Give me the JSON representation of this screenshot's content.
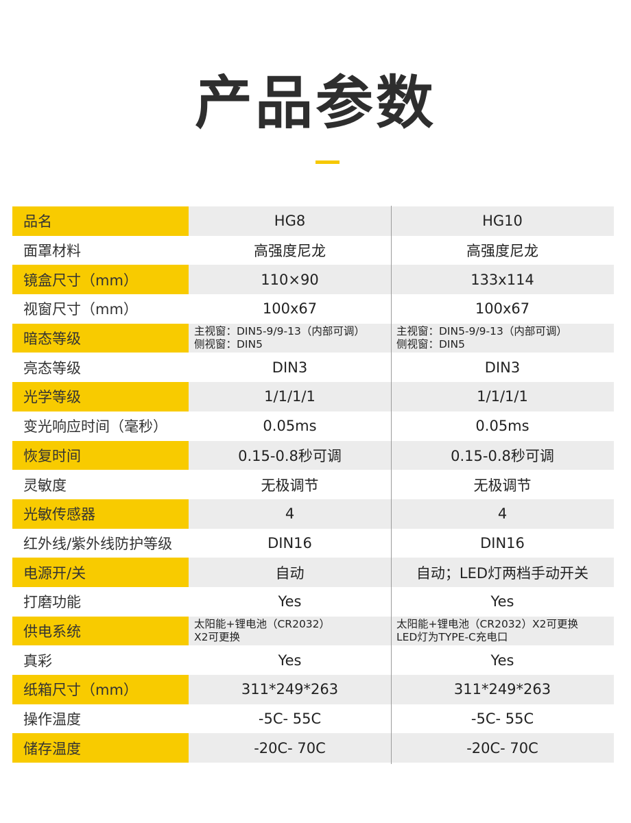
{
  "title": "产品参数",
  "accent_color": "#f8cb00",
  "table": {
    "rows": [
      {
        "label": "品名",
        "hg8": "HG8",
        "hg10": "HG10"
      },
      {
        "label": "面罩材料",
        "hg8": "高强度尼龙",
        "hg10": "高强度尼龙"
      },
      {
        "label": "镜盒尺寸（mm）",
        "hg8": "110×90",
        "hg10": "133x114"
      },
      {
        "label": "视窗尺寸（mm）",
        "hg8": "100x67",
        "hg10": "100x67"
      },
      {
        "label": "暗态等级",
        "hg8": [
          "主视窗：DIN5-9/9-13（内部可调）",
          "侧视窗：DIN5"
        ],
        "hg10": [
          "主视窗：DIN5-9/9-13（内部可调）",
          "侧视窗：DIN5"
        ]
      },
      {
        "label": "亮态等级",
        "hg8": "DIN3",
        "hg10": "DIN3"
      },
      {
        "label": "光学等级",
        "hg8": "1/1/1/1",
        "hg10": "1/1/1/1"
      },
      {
        "label": "变光响应时间（毫秒）",
        "hg8": "0.05ms",
        "hg10": "0.05ms"
      },
      {
        "label": "恢复时间",
        "hg8": "0.15-0.8秒可调",
        "hg10": "0.15-0.8秒可调"
      },
      {
        "label": "灵敏度",
        "hg8": "无极调节",
        "hg10": "无极调节"
      },
      {
        "label": "光敏传感器",
        "hg8": "4",
        "hg10": "4"
      },
      {
        "label": "红外线/紫外线防护等级",
        "hg8": "DIN16",
        "hg10": "DIN16"
      },
      {
        "label": "电源开/关",
        "hg8": "自动",
        "hg10": "自动；LED灯两档手动开关"
      },
      {
        "label": "打磨功能",
        "hg8": "Yes",
        "hg10": "Yes"
      },
      {
        "label": "供电系统",
        "hg8": [
          "太阳能+锂电池（CR2032）",
          "X2可更换"
        ],
        "hg10": [
          "太阳能+锂电池（CR2032）X2可更换",
          "LED灯为TYPE-C充电口"
        ]
      },
      {
        "label": "真彩",
        "hg8": "Yes",
        "hg10": "Yes"
      },
      {
        "label": "纸箱尺寸（mm）",
        "hg8": "311*249*263",
        "hg10": "311*249*263"
      },
      {
        "label": "操作温度",
        "hg8": "-5C- 55C",
        "hg10": "-5C- 55C"
      },
      {
        "label": "储存温度",
        "hg8": "-20C- 70C",
        "hg10": "-20C- 70C"
      }
    ]
  }
}
